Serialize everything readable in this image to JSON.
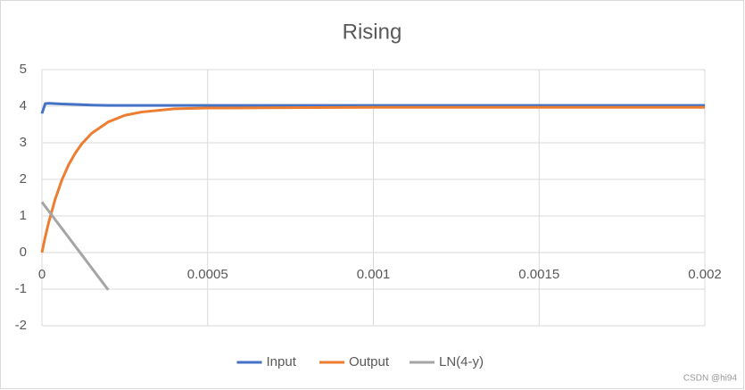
{
  "chart_data": {
    "type": "line",
    "title": "Rising",
    "xlim": [
      0,
      0.002
    ],
    "xticks": [
      0,
      0.0005,
      0.001,
      0.0015,
      0.002
    ],
    "ylim": [
      -2,
      5
    ],
    "yticks": [
      -2,
      -1,
      0,
      1,
      2,
      3,
      4,
      5
    ],
    "grid": true,
    "legend": "bottom",
    "series": [
      {
        "name": "Input",
        "color": "#4472c4",
        "x": [
          0,
          1e-05,
          2e-05,
          4e-05,
          6e-05,
          0.0001,
          0.00015,
          0.0002,
          0.0005,
          0.001,
          0.0015,
          0.002
        ],
        "values": [
          3.8,
          4.07,
          4.08,
          4.07,
          4.06,
          4.05,
          4.03,
          4.02,
          4.02,
          4.02,
          4.02,
          4.02
        ]
      },
      {
        "name": "Output",
        "color": "#ed7d31",
        "x": [
          0,
          1e-05,
          2e-05,
          4e-05,
          6e-05,
          8e-05,
          0.0001,
          0.00012,
          0.00015,
          0.0002,
          0.00025,
          0.0003,
          0.0004,
          0.0005,
          0.00075,
          0.001,
          0.0015,
          0.002
        ],
        "values": [
          0,
          0.43,
          0.81,
          1.46,
          1.98,
          2.39,
          2.71,
          2.97,
          3.26,
          3.57,
          3.75,
          3.84,
          3.93,
          3.95,
          3.96,
          3.97,
          3.97,
          3.97
        ]
      },
      {
        "name": "LN(4-y)",
        "color": "#a5a5a5",
        "x": [
          0,
          1e-05,
          2e-05,
          4e-05,
          6e-05,
          8e-05,
          0.0001,
          0.00012,
          0.00015,
          0.0002
        ],
        "values": [
          1.38,
          1.26,
          1.14,
          0.9,
          0.66,
          0.42,
          0.18,
          -0.06,
          -0.42,
          -1.02
        ]
      }
    ],
    "watermark": "CSDN @hi94"
  }
}
